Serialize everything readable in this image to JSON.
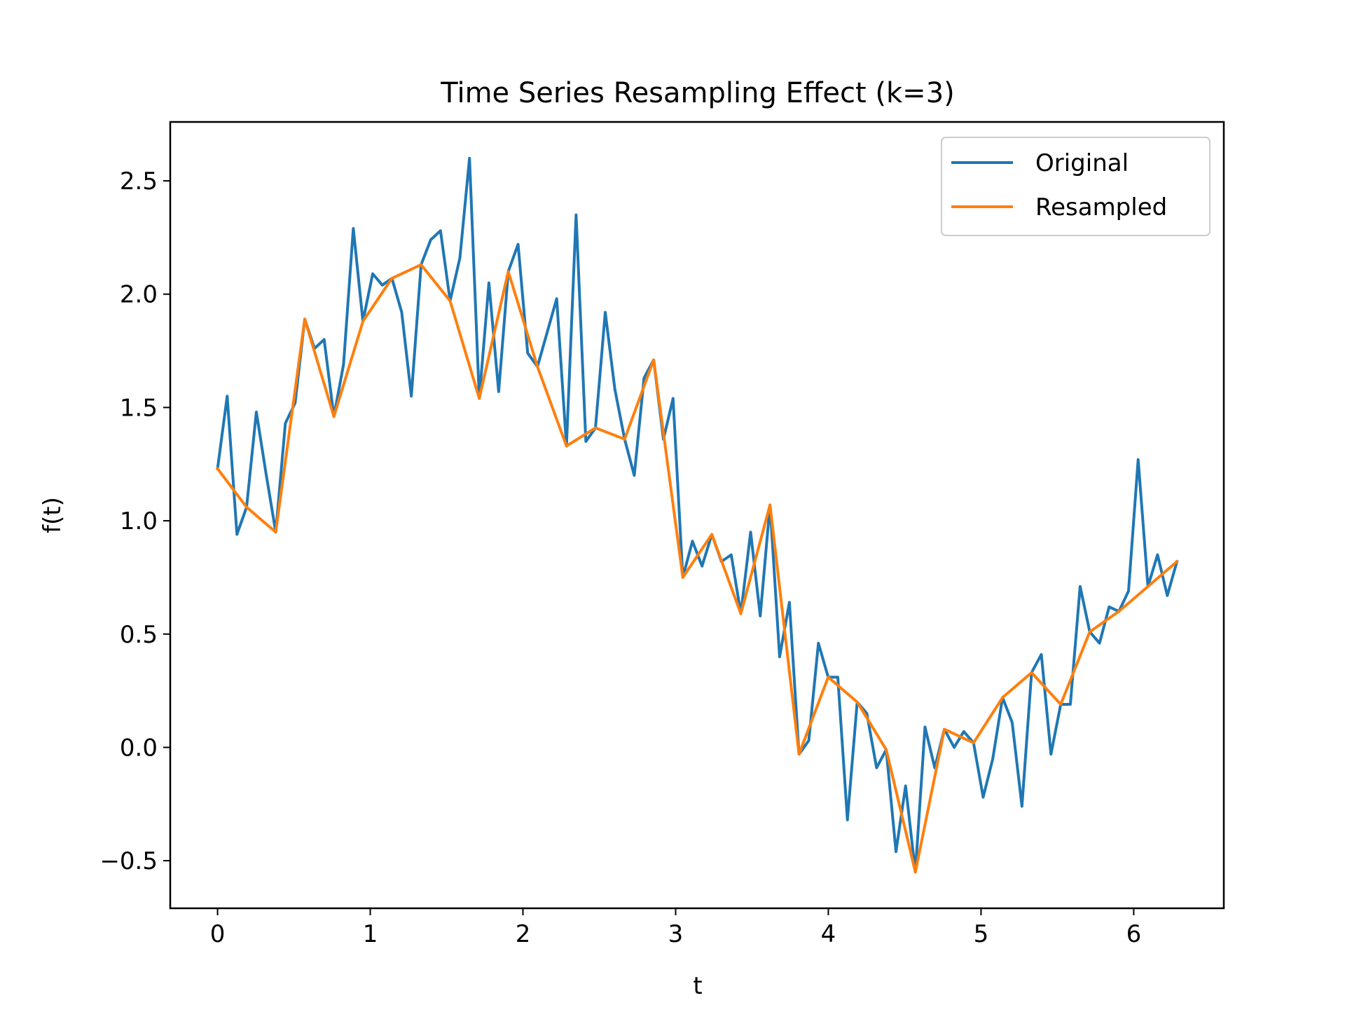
{
  "chart_data": {
    "type": "line",
    "title": "Time Series Resampling Effect (k=3)",
    "xlabel": "t",
    "ylabel": "f(t)",
    "xlim": [
      -0.31,
      6.59
    ],
    "ylim": [
      -0.71,
      2.76
    ],
    "xticks": [
      0,
      1,
      2,
      3,
      4,
      5,
      6
    ],
    "xtick_labels": [
      "0",
      "1",
      "2",
      "3",
      "4",
      "5",
      "6"
    ],
    "yticks": [
      -0.5,
      0.0,
      0.5,
      1.0,
      1.5,
      2.0,
      2.5
    ],
    "ytick_labels": [
      "−0.5",
      "0.0",
      "0.5",
      "1.0",
      "1.5",
      "2.0",
      "2.5"
    ],
    "grid": false,
    "legend_position": "top-right",
    "series": [
      {
        "name": "Original",
        "color": "#1f77b4",
        "x": [
          0.0,
          0.063,
          0.127,
          0.19,
          0.254,
          0.317,
          0.381,
          0.444,
          0.508,
          0.571,
          0.635,
          0.698,
          0.762,
          0.825,
          0.889,
          0.952,
          1.016,
          1.079,
          1.142,
          1.206,
          1.269,
          1.333,
          1.396,
          1.46,
          1.523,
          1.587,
          1.65,
          1.714,
          1.777,
          1.841,
          1.904,
          1.968,
          2.031,
          2.095,
          2.158,
          2.221,
          2.285,
          2.348,
          2.412,
          2.475,
          2.539,
          2.602,
          2.666,
          2.729,
          2.793,
          2.856,
          2.92,
          2.983,
          3.047,
          3.11,
          3.173,
          3.237,
          3.3,
          3.364,
          3.427,
          3.491,
          3.554,
          3.618,
          3.681,
          3.745,
          3.808,
          3.872,
          3.935,
          3.999,
          4.062,
          4.125,
          4.189,
          4.252,
          4.316,
          4.379,
          4.443,
          4.506,
          4.57,
          4.633,
          4.697,
          4.76,
          4.824,
          4.887,
          4.951,
          5.014,
          5.077,
          5.141,
          5.204,
          5.268,
          5.331,
          5.395,
          5.458,
          5.522,
          5.585,
          5.649,
          5.712,
          5.776,
          5.839,
          5.903,
          5.966,
          6.029,
          6.093,
          6.156,
          6.22,
          6.283
        ],
        "y": [
          1.23,
          1.55,
          0.94,
          1.06,
          1.48,
          1.21,
          0.95,
          1.43,
          1.52,
          1.89,
          1.76,
          1.8,
          1.46,
          1.69,
          2.29,
          1.88,
          2.09,
          2.04,
          2.07,
          1.92,
          1.55,
          2.13,
          2.24,
          2.28,
          1.97,
          2.16,
          2.6,
          1.54,
          2.05,
          1.57,
          2.1,
          2.22,
          1.74,
          1.68,
          1.83,
          1.98,
          1.33,
          2.35,
          1.35,
          1.41,
          1.92,
          1.58,
          1.36,
          1.2,
          1.63,
          1.71,
          1.36,
          1.54,
          0.75,
          0.91,
          0.8,
          0.94,
          0.82,
          0.85,
          0.59,
          0.95,
          0.58,
          1.07,
          0.4,
          0.64,
          -0.03,
          0.03,
          0.46,
          0.31,
          0.31,
          -0.32,
          0.2,
          0.15,
          -0.09,
          -0.01,
          -0.46,
          -0.17,
          -0.55,
          0.09,
          -0.09,
          0.08,
          0.0,
          0.07,
          0.02,
          -0.22,
          -0.05,
          0.22,
          0.11,
          -0.26,
          0.33,
          0.41,
          -0.03,
          0.19,
          0.19,
          0.71,
          0.51,
          0.46,
          0.62,
          0.6,
          0.69,
          1.27,
          0.71,
          0.85,
          0.67,
          0.82
        ]
      },
      {
        "name": "Resampled",
        "color": "#ff7f0e",
        "x": [
          0.0,
          0.19,
          0.381,
          0.571,
          0.762,
          0.952,
          1.142,
          1.333,
          1.523,
          1.714,
          1.904,
          2.095,
          2.285,
          2.475,
          2.666,
          2.856,
          3.047,
          3.237,
          3.427,
          3.618,
          3.808,
          3.999,
          4.189,
          4.379,
          4.57,
          4.76,
          4.951,
          5.141,
          5.331,
          5.522,
          5.712,
          5.903,
          6.093,
          6.283
        ],
        "y": [
          1.23,
          1.06,
          0.95,
          1.89,
          1.46,
          1.88,
          2.07,
          2.13,
          1.97,
          1.54,
          2.1,
          1.68,
          1.33,
          1.41,
          1.36,
          1.71,
          0.75,
          0.94,
          0.59,
          1.07,
          -0.03,
          0.31,
          0.2,
          -0.01,
          -0.55,
          0.08,
          0.02,
          0.22,
          0.33,
          0.19,
          0.51,
          0.6,
          0.71,
          0.82
        ]
      }
    ]
  }
}
